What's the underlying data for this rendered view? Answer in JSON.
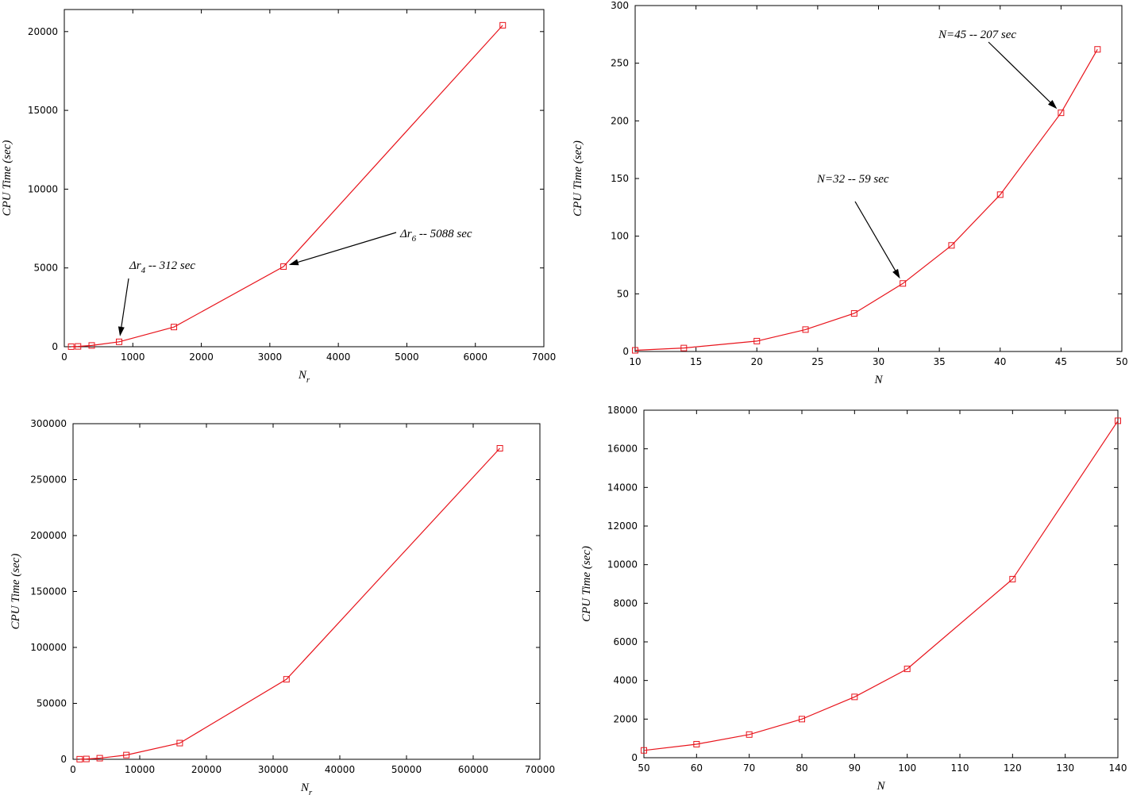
{
  "colors": {
    "series": "#e8141c",
    "axis": "#000000"
  },
  "chart_data": [
    {
      "type": "line",
      "xlabel": "N",
      "xlabel_sub": "r",
      "ylabel": "CPU Time (sec)",
      "xlim": [
        0,
        7000
      ],
      "ylim": [
        0,
        21400
      ],
      "xticks": [
        0,
        1000,
        2000,
        3000,
        4000,
        5000,
        6000,
        7000
      ],
      "yticks": [
        0,
        5000,
        10000,
        15000,
        20000
      ],
      "grid": false,
      "series": [
        {
          "x": [
            100,
            200,
            400,
            800,
            1600,
            3200,
            6400
          ],
          "y": [
            5,
            20,
            80,
            312,
            1250,
            5088,
            20400
          ]
        }
      ],
      "annotations": [
        {
          "pre": "Δr",
          "sub": "4",
          "post": " -- 312 sec",
          "at_x": 800,
          "at_y": 312
        },
        {
          "pre": "Δr",
          "sub": "6",
          "post": " -- 5088 sec",
          "at_x": 3200,
          "at_y": 5088
        }
      ]
    },
    {
      "type": "line",
      "xlabel": "N",
      "ylabel": "CPU Time (sec)",
      "xlim": [
        10,
        50
      ],
      "ylim": [
        0,
        300
      ],
      "xticks": [
        10,
        15,
        20,
        25,
        30,
        35,
        40,
        45,
        50
      ],
      "yticks": [
        0,
        50,
        100,
        150,
        200,
        250,
        300
      ],
      "grid": false,
      "series": [
        {
          "x": [
            10,
            14,
            20,
            24,
            28,
            32,
            36,
            40,
            45,
            48
          ],
          "y": [
            1,
            3,
            9,
            19,
            33,
            59,
            92,
            136,
            207,
            262
          ]
        }
      ],
      "annotations": [
        {
          "text": "N=32 -- 59 sec",
          "at_x": 32,
          "at_y": 59
        },
        {
          "text": "N=45 -- 207 sec",
          "at_x": 45,
          "at_y": 207
        }
      ]
    },
    {
      "type": "line",
      "xlabel": "N",
      "xlabel_sub": "r",
      "ylabel": "CPU Time (sec)",
      "xlim": [
        0,
        70000
      ],
      "ylim": [
        0,
        300000
      ],
      "xticks": [
        0,
        10000,
        20000,
        30000,
        40000,
        50000,
        60000,
        70000
      ],
      "yticks": [
        0,
        50000,
        100000,
        150000,
        200000,
        250000,
        300000
      ],
      "grid": false,
      "series": [
        {
          "x": [
            1000,
            2000,
            4000,
            8000,
            16000,
            32000,
            64000
          ],
          "y": [
            100,
            300,
            1000,
            3800,
            14500,
            71500,
            278000
          ]
        }
      ],
      "annotations": []
    },
    {
      "type": "line",
      "xlabel": "N",
      "ylabel": "CPU Time (sec)",
      "xlim": [
        50,
        140
      ],
      "ylim": [
        0,
        18000
      ],
      "xticks": [
        50,
        60,
        70,
        80,
        90,
        100,
        110,
        120,
        130,
        140
      ],
      "yticks": [
        0,
        2000,
        4000,
        6000,
        8000,
        10000,
        12000,
        14000,
        16000,
        18000
      ],
      "grid": false,
      "series": [
        {
          "x": [
            50,
            60,
            70,
            80,
            90,
            100,
            120,
            140
          ],
          "y": [
            380,
            700,
            1200,
            2000,
            3150,
            4600,
            9250,
            17450
          ]
        }
      ],
      "annotations": []
    }
  ]
}
